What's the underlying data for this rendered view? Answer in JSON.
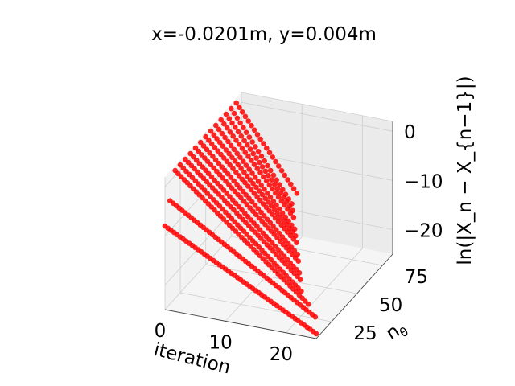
{
  "chart_data": {
    "type": "scatter",
    "projection": "3d",
    "title": "x=-0.0201m, y=0.004m",
    "xlabel": "iteration",
    "ylabel": "n",
    "ylabel_subscript": "θ",
    "zlabel": "ln(|X_n − X_{n−1}|)",
    "xlim": [
      0,
      25
    ],
    "ylim": [
      10,
      85
    ],
    "zlim": [
      -25,
      2
    ],
    "xticks": [
      "0",
      "10",
      "20"
    ],
    "yticks": [
      "25",
      "50",
      "75"
    ],
    "zticks": [
      "0",
      "−10",
      "−20"
    ],
    "grid": true,
    "marker_color": "#ff0000",
    "series": [
      {
        "description": "one trace per n_theta value; z decays roughly linearly with iteration",
        "n_theta": [
          10,
          15,
          20,
          25,
          30,
          35,
          40,
          45,
          50,
          55,
          60,
          65,
          70,
          75,
          80
        ],
        "x_start": [
          0,
          0,
          0,
          0,
          0,
          0,
          0,
          0,
          0,
          0,
          0,
          0,
          0,
          0,
          0
        ],
        "z_start": [
          -8,
          -4,
          1,
          1,
          1,
          1,
          1,
          1,
          1,
          1,
          1,
          1,
          1,
          1,
          1
        ],
        "x_end": [
          25,
          24,
          22,
          20,
          19,
          18,
          17,
          16,
          15,
          14,
          13,
          12,
          11,
          10,
          10
        ],
        "z_end": [
          -24,
          -22,
          -21,
          -20,
          -19,
          -19,
          -18,
          -18,
          -17,
          -17,
          -17,
          -16,
          -16,
          -16,
          -15
        ]
      }
    ]
  }
}
